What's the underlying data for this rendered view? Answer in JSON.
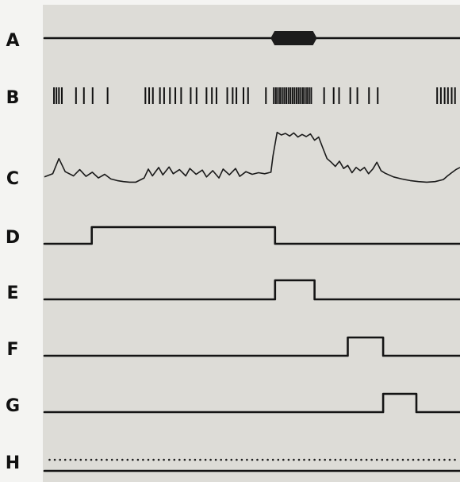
{
  "chart_data": {
    "type": "line",
    "title": "",
    "xlabel": "",
    "ylabel": "",
    "xlim": [
      0,
      100
    ],
    "channels": [
      {
        "label": "A",
        "kind": "event-marker",
        "baseline": 0,
        "events": [
          {
            "start": 55.0,
            "end": 65.0,
            "level": 1
          }
        ]
      },
      {
        "label": "B",
        "kind": "spike-train",
        "spikes": [
          2.3,
          2.9,
          3.5,
          4.2,
          7.6,
          9.5,
          11.6,
          15.2,
          24.3,
          25.2,
          26.1,
          27.8,
          28.8,
          30.2,
          31.5,
          32.9,
          35.2,
          36.6,
          39.0,
          40.3,
          41.4,
          44.0,
          45.3,
          46.2,
          47.9,
          49.0,
          53.3,
          55.2,
          55.7,
          56.2,
          56.7,
          57.2,
          57.7,
          58.2,
          58.7,
          59.2,
          59.7,
          60.2,
          60.7,
          61.2,
          61.7,
          62.2,
          62.7,
          63.2,
          63.7,
          64.2,
          67.3,
          69.6,
          70.9,
          73.6,
          75.3,
          78.1,
          80.2,
          94.5,
          95.4,
          96.3,
          97.1,
          98.0,
          98.8
        ]
      },
      {
        "label": "C",
        "kind": "analog",
        "x": [
          0,
          2,
          3.5,
          5,
          7,
          8.5,
          10,
          11.5,
          13,
          14.5,
          16,
          17.5,
          19,
          20.5,
          22,
          24,
          25,
          26,
          27.5,
          28.5,
          30,
          31,
          32.5,
          34,
          35,
          36.5,
          38,
          39,
          40.5,
          42,
          43,
          44.5,
          46,
          47,
          48.5,
          50,
          51.5,
          53,
          54.5,
          55,
          56,
          57,
          58,
          59,
          60,
          61,
          62,
          63,
          64,
          65,
          66,
          67,
          68,
          69,
          70,
          71,
          72,
          73,
          74,
          75,
          76,
          77,
          78,
          79,
          80,
          81,
          82,
          84,
          86,
          88,
          90,
          92,
          94,
          96,
          97,
          98,
          99,
          100
        ],
        "y": [
          2.0,
          2.6,
          5.5,
          3.0,
          2.2,
          3.4,
          2.1,
          2.9,
          1.8,
          2.5,
          1.6,
          1.3,
          1.1,
          1.0,
          1.0,
          1.8,
          3.5,
          2.2,
          3.8,
          2.4,
          3.9,
          2.6,
          3.4,
          2.2,
          3.6,
          2.5,
          3.3,
          2.0,
          3.2,
          1.8,
          3.5,
          2.4,
          3.6,
          2.1,
          3.0,
          2.5,
          2.8,
          2.6,
          2.9,
          6.0,
          10.5,
          10.0,
          10.3,
          9.8,
          10.4,
          9.6,
          10.1,
          9.7,
          10.2,
          9.0,
          9.6,
          7.5,
          5.5,
          4.8,
          4.0,
          5.0,
          3.6,
          4.2,
          2.8,
          3.8,
          3.2,
          3.8,
          2.6,
          3.5,
          4.8,
          3.2,
          2.7,
          2.0,
          1.6,
          1.3,
          1.1,
          1.0,
          1.1,
          1.5,
          2.2,
          2.8,
          3.4,
          3.8
        ]
      },
      {
        "label": "D",
        "kind": "step",
        "x": [
          0,
          11.4,
          11.4,
          55.5,
          55.5,
          100
        ],
        "y": [
          0,
          0,
          1,
          1,
          0,
          0
        ]
      },
      {
        "label": "E",
        "kind": "step",
        "x": [
          0,
          55.5,
          55.5,
          65.0,
          65.0,
          100
        ],
        "y": [
          0,
          0,
          1,
          1,
          0,
          0
        ]
      },
      {
        "label": "F",
        "kind": "step",
        "x": [
          0,
          73.0,
          73.0,
          81.5,
          81.5,
          100
        ],
        "y": [
          0,
          0,
          1,
          1,
          0,
          0
        ]
      },
      {
        "label": "G",
        "kind": "step",
        "x": [
          0,
          81.5,
          81.5,
          89.5,
          89.5,
          100
        ],
        "y": [
          0,
          0,
          1,
          1,
          0,
          0
        ]
      },
      {
        "label": "H",
        "kind": "time-marker",
        "tick_interval": 1.25
      }
    ]
  }
}
